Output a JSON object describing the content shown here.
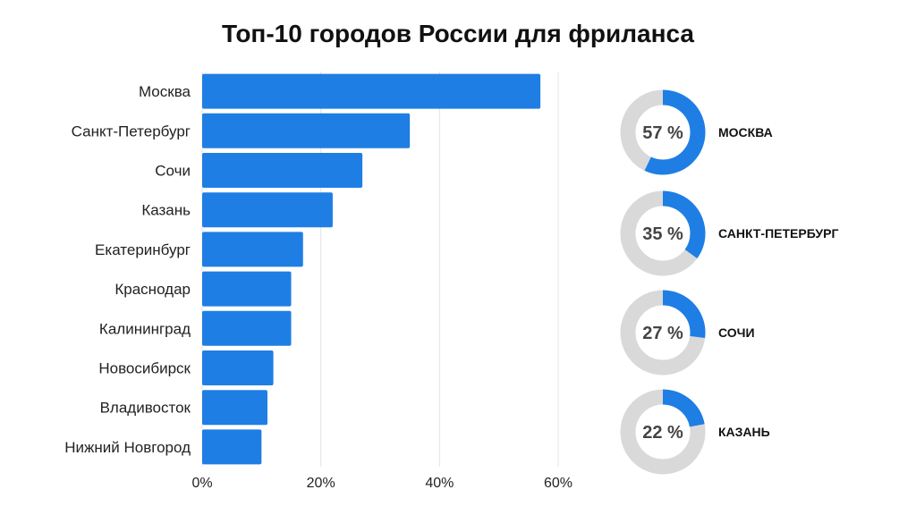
{
  "colors": {
    "bar": "#1e7ee4",
    "donut_track": "#d9d9d9",
    "grid": "#e3e3e3"
  },
  "chart_data": [
    {
      "type": "bar",
      "orientation": "horizontal",
      "title": "Топ-10 городов России для фриланса",
      "categories": [
        "Москва",
        "Санкт-Петербург",
        "Сочи",
        "Казань",
        "Екатеринбург",
        "Краснодар",
        "Калининград",
        "Новосибирск",
        "Владивосток",
        "Нижний Новгород"
      ],
      "values": [
        57,
        35,
        27,
        22,
        17,
        15,
        15,
        12,
        11,
        10
      ],
      "xlim": [
        0,
        60
      ],
      "xticks": [
        "0%",
        "20%",
        "40%",
        "60%"
      ],
      "grid": true
    },
    {
      "type": "pie",
      "style": "donut",
      "items": [
        {
          "name": "МОСКВА",
          "value": 57,
          "label": "57 %"
        },
        {
          "name": "САНКТ-ПЕТЕРБУРГ",
          "value": 35,
          "label": "35 %"
        },
        {
          "name": "СОЧИ",
          "value": 27,
          "label": "27 %"
        },
        {
          "name": "КАЗАНЬ",
          "value": 22,
          "label": "22 %"
        }
      ]
    }
  ]
}
